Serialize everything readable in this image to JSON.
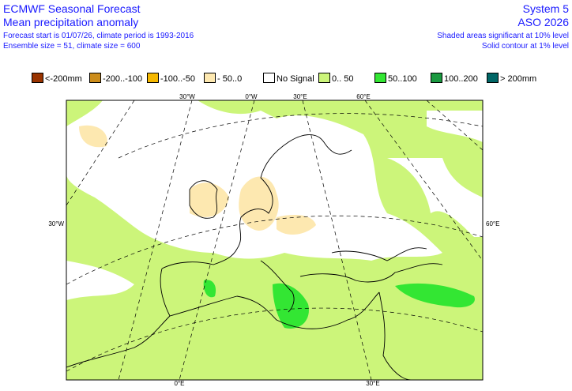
{
  "header": {
    "left": [
      "ECMWF Seasonal Forecast",
      "Mean precipitation anomaly",
      "Forecast start is 01/07/26, climate period is 1993-2016",
      "Ensemble size = 51, climate size = 600"
    ],
    "right": [
      "System 5",
      "ASO 2026",
      "Shaded areas significant at 10% level",
      "Solid contour at 1% level"
    ]
  },
  "legend": [
    {
      "label": "<-200mm",
      "color": "#993300"
    },
    {
      "label": "-200..-100",
      "color": "#cc8c1a"
    },
    {
      "label": "-100..-50",
      "color": "#f5b800"
    },
    {
      "label": "- 50..0",
      "color": "#fde8b0"
    },
    {
      "label": "No Signal",
      "color": "#ffffff"
    },
    {
      "label": "0.. 50",
      "color": "#ccf57a"
    },
    {
      "label": "50..100",
      "color": "#33e633"
    },
    {
      "label": "100..200",
      "color": "#1a9940"
    },
    {
      "label": "> 200mm",
      "color": "#006666"
    }
  ],
  "map": {
    "graticule_labels": [
      "30°W",
      "0°W",
      "30°E",
      "60°E",
      "30°W",
      "60°E",
      "0°E",
      "30°E"
    ]
  }
}
